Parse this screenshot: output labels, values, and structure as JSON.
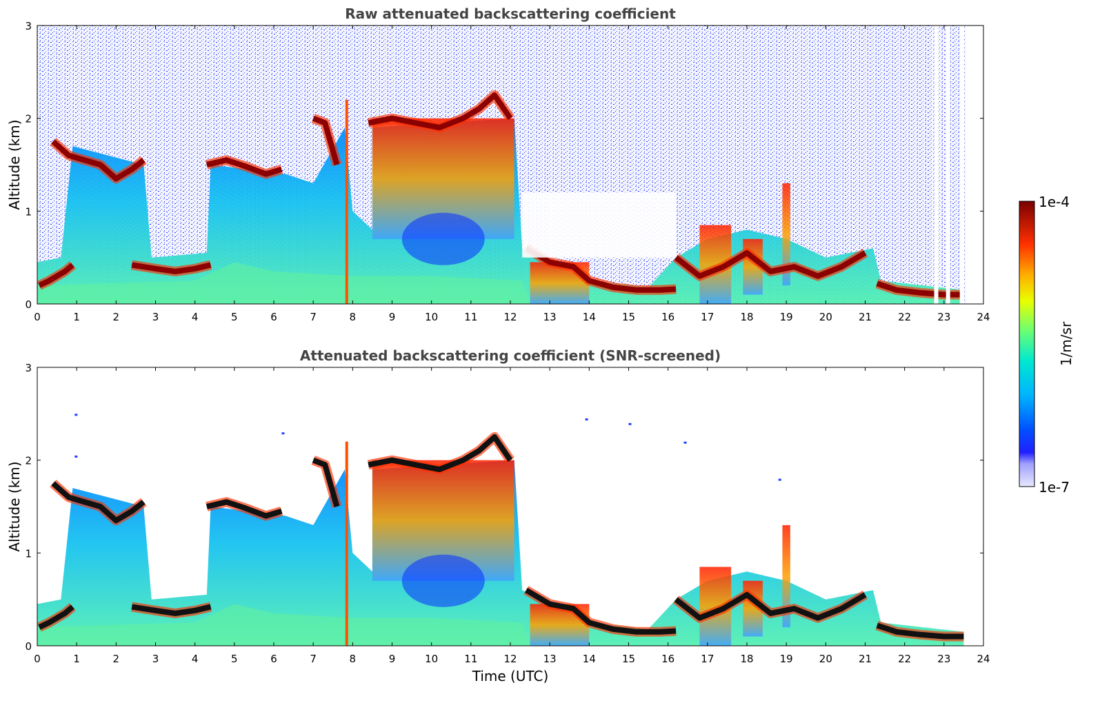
{
  "chart_data": [
    {
      "type": "heatmap",
      "title": "Raw attenuated backscattering coefficient",
      "xlabel": "",
      "ylabel": "Altitude (km)",
      "xlim": [
        0,
        24
      ],
      "ylim": [
        0,
        3
      ],
      "xticks": [
        "0",
        "1",
        "2",
        "3",
        "4",
        "5",
        "6",
        "7",
        "8",
        "9",
        "10",
        "11",
        "12",
        "13",
        "14",
        "15",
        "16",
        "17",
        "18",
        "19",
        "20",
        "21",
        "22",
        "23",
        "24"
      ],
      "yticks": [
        "0",
        "1",
        "2",
        "3"
      ],
      "layers": [
        {
          "x": [
            0.05,
            0.3,
            0.5,
            0.7,
            0.9
          ],
          "y": [
            0.2,
            0.25,
            0.3,
            0.35,
            0.42
          ]
        },
        {
          "x": [
            0.4,
            0.8,
            1.2,
            1.6,
            2.0,
            2.4,
            2.7
          ],
          "y": [
            1.75,
            1.6,
            1.55,
            1.5,
            1.35,
            1.45,
            1.55
          ]
        },
        {
          "x": [
            2.4,
            3.0,
            3.5,
            4.0,
            4.4
          ],
          "y": [
            0.42,
            0.38,
            0.35,
            0.38,
            0.42
          ]
        },
        {
          "x": [
            4.3,
            4.8,
            5.3,
            5.8,
            6.2
          ],
          "y": [
            1.5,
            1.55,
            1.48,
            1.4,
            1.45
          ]
        },
        {
          "x": [
            7.0,
            7.3,
            7.6
          ],
          "y": [
            2.0,
            1.95,
            1.5
          ]
        },
        {
          "x": [
            8.4,
            9.0,
            9.6,
            10.2,
            10.8,
            11.2,
            11.6,
            12.0
          ],
          "y": [
            1.95,
            2.0,
            1.95,
            1.9,
            2.0,
            2.1,
            2.25,
            2.0
          ]
        },
        {
          "x": [
            12.4,
            13.0,
            13.6,
            14.0,
            14.6,
            15.2,
            15.8,
            16.2
          ],
          "y": [
            0.6,
            0.45,
            0.4,
            0.25,
            0.18,
            0.15,
            0.15,
            0.16
          ]
        },
        {
          "x": [
            16.2,
            16.8,
            17.4,
            18.0,
            18.6,
            19.2,
            19.8,
            20.4,
            21.0
          ],
          "y": [
            0.5,
            0.3,
            0.4,
            0.55,
            0.35,
            0.4,
            0.3,
            0.4,
            0.55
          ]
        },
        {
          "x": [
            21.3,
            21.8,
            22.4,
            23.0,
            23.5
          ],
          "y": [
            0.22,
            0.15,
            0.12,
            0.1,
            0.1
          ]
        }
      ]
    },
    {
      "type": "heatmap",
      "title": "Attenuated backscattering coefficient (SNR-screened)",
      "xlabel": "Time (UTC)",
      "ylabel": "Altitude (km)",
      "xlim": [
        0,
        24
      ],
      "ylim": [
        0,
        3
      ],
      "xticks": [
        "0",
        "1",
        "2",
        "3",
        "4",
        "5",
        "6",
        "7",
        "8",
        "9",
        "10",
        "11",
        "12",
        "13",
        "14",
        "15",
        "16",
        "17",
        "18",
        "19",
        "20",
        "21",
        "22",
        "23",
        "24"
      ],
      "yticks": [
        "0",
        "1",
        "2",
        "3"
      ]
    }
  ],
  "colorbar": {
    "label": "1/m/sr",
    "max_label": "1e-4",
    "min_label": "1e-7",
    "scale": "log",
    "range": [
      1e-07,
      0.0001
    ],
    "colors": [
      "#ffffff",
      "#c8c8ff",
      "#0000ff",
      "#00aaff",
      "#00e0c0",
      "#80ff60",
      "#ffff00",
      "#ffa000",
      "#ff3000",
      "#8b0000"
    ]
  }
}
